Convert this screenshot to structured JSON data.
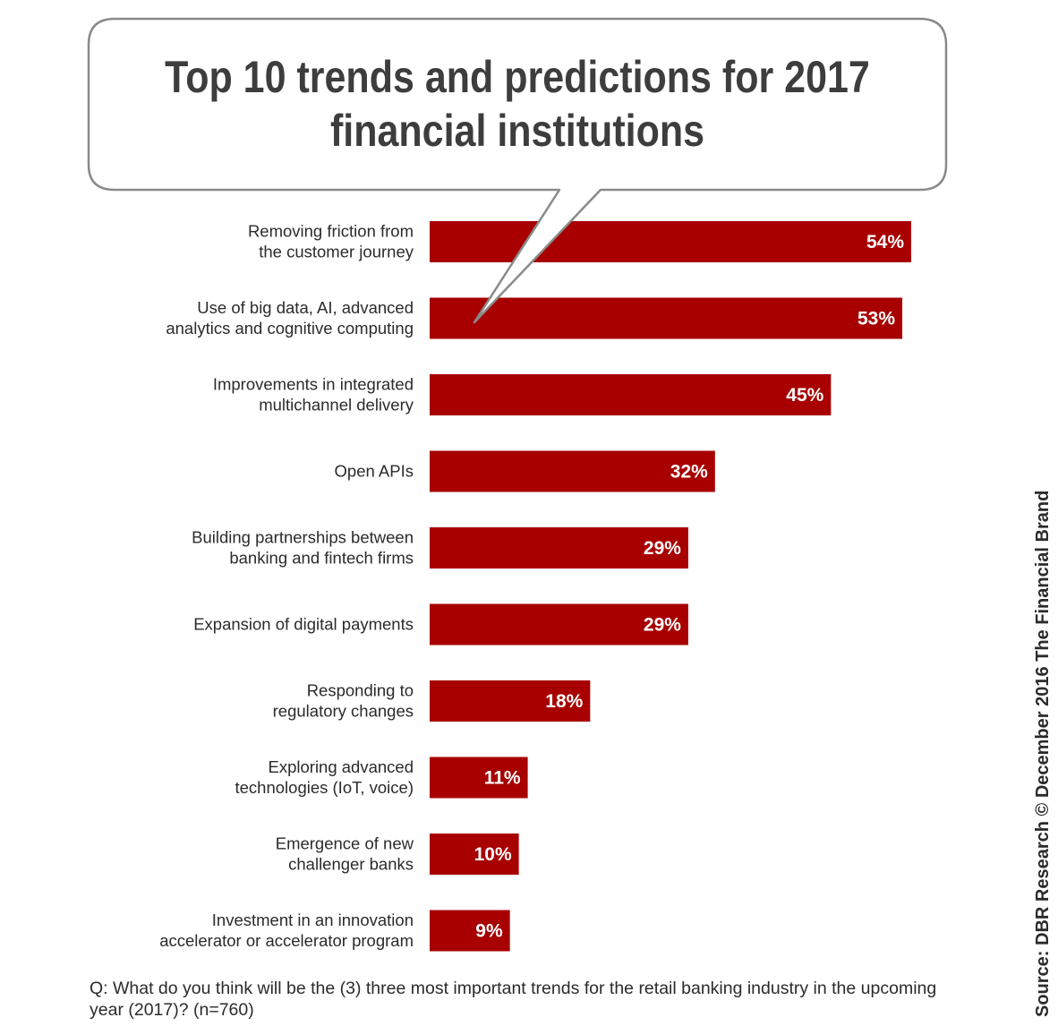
{
  "chart_data": {
    "type": "bar",
    "orientation": "horizontal",
    "title": "Top 10 trends and predictions for 2017\nfinancial institutions",
    "categories": [
      "Removing friction from\nthe customer journey",
      "Use of big data, AI, advanced\nanalytics and cognitive computing",
      "Improvements in integrated\nmultichannel delivery",
      "Open APIs",
      "Building partnerships between\nbanking and fintech firms",
      "Expansion of digital payments",
      "Responding to\nregulatory changes",
      "Exploring advanced\ntechnologies (IoT, voice)",
      "Emergence of new\nchallenger banks",
      "Investment in an innovation\naccelerator or accelerator program"
    ],
    "values": [
      54,
      53,
      45,
      32,
      29,
      29,
      18,
      11,
      10,
      9
    ],
    "value_labels": [
      "54%",
      "53%",
      "45%",
      "32%",
      "29%",
      "29%",
      "18%",
      "11%",
      "10%",
      "9%"
    ],
    "unit": "%",
    "xlim": [
      0,
      54
    ],
    "grid": false,
    "legend": "none",
    "bar_color": "#a80000"
  },
  "question": "Q: What do you think will be the (3) three most important trends for the retail banking industry in the upcoming year (2017)? (n=760)",
  "source": "Source: DBR Research © December 2016 The Financial Brand"
}
